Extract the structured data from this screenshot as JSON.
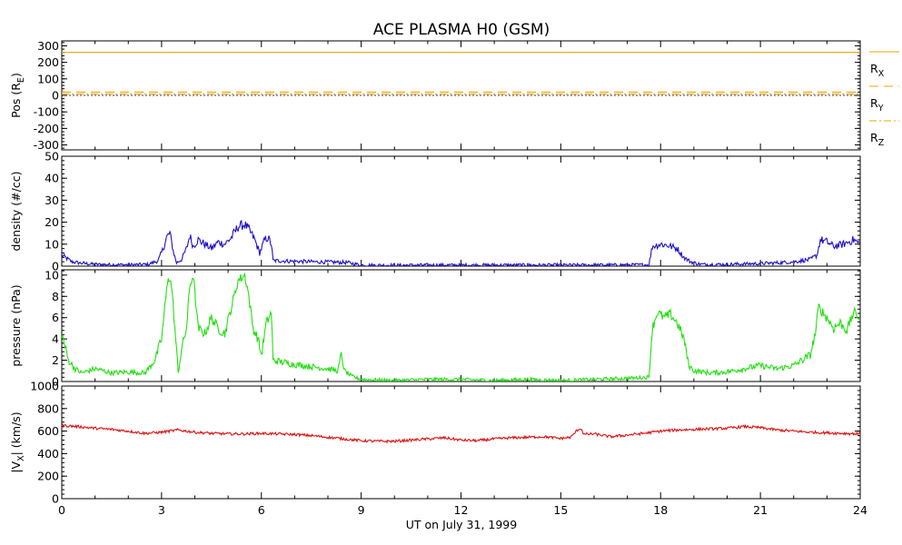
{
  "chart_data": {
    "title": "ACE PLASMA H0 (GSM)",
    "xlabel": "UT on July 31, 1999",
    "x_ticks": [
      "0",
      "3",
      "6",
      "9",
      "12",
      "15",
      "18",
      "21",
      "24"
    ],
    "xlim": [
      0,
      24
    ],
    "panels": [
      {
        "id": "pos",
        "type": "line",
        "ylabel": {
          "main": "Pos (R",
          "sub": "E",
          "tail": ")"
        },
        "ylim": [
          -330,
          330
        ],
        "y_ticks": [
          -300,
          -200,
          -100,
          0,
          100,
          200,
          300
        ],
        "y_tick_labels": [
          "-300",
          "-200",
          "-100",
          "0",
          "100",
          "200",
          "300"
        ],
        "series": [
          {
            "name": "R",
            "sub": "X",
            "color": "#f0a000",
            "dash": "solid",
            "values": [
              [
                0,
                260
              ],
              [
                24,
                260
              ]
            ]
          },
          {
            "name": "R",
            "sub": "Y",
            "color": "#f0a000",
            "dash": "dashed",
            "values": [
              [
                0,
                20
              ],
              [
                24,
                20
              ]
            ]
          },
          {
            "name": "R",
            "sub": "Z",
            "color": "#f0a000",
            "dash": "dashdot",
            "values": [
              [
                0,
                8
              ],
              [
                24,
                8
              ]
            ]
          }
        ]
      },
      {
        "id": "density",
        "type": "line",
        "ylabel": {
          "main": "density (#/cc)",
          "sub": "",
          "tail": ""
        },
        "ylim": [
          0,
          50
        ],
        "y_ticks": [
          0,
          10,
          20,
          30,
          40,
          50
        ],
        "y_tick_labels": [
          "0",
          "10",
          "20",
          "30",
          "40",
          "50"
        ],
        "series": [
          {
            "name": "",
            "color": "#1f10c8",
            "values": [
              [
                0,
                5
              ],
              [
                0.3,
                2
              ],
              [
                0.5,
                1.5
              ],
              [
                1,
                0.8
              ],
              [
                2,
                0.6
              ],
              [
                2.6,
                0.8
              ],
              [
                2.9,
                2.5
              ],
              [
                3.05,
                8
              ],
              [
                3.15,
                13
              ],
              [
                3.25,
                15
              ],
              [
                3.35,
                7
              ],
              [
                3.45,
                1.5
              ],
              [
                3.6,
                3
              ],
              [
                3.75,
                8
              ],
              [
                3.85,
                14
              ],
              [
                3.95,
                9
              ],
              [
                4.1,
                12
              ],
              [
                4.3,
                10
              ],
              [
                4.5,
                8
              ],
              [
                4.7,
                11
              ],
              [
                4.9,
                10
              ],
              [
                5.1,
                13
              ],
              [
                5.3,
                18
              ],
              [
                5.5,
                19
              ],
              [
                5.65,
                16
              ],
              [
                5.8,
                12
              ],
              [
                5.95,
                6
              ],
              [
                6.1,
                12
              ],
              [
                6.2,
                13
              ],
              [
                6.3,
                10
              ],
              [
                6.35,
                2.5
              ],
              [
                6.8,
                2.3
              ],
              [
                7.5,
                2
              ],
              [
                8.2,
                1.8
              ],
              [
                8.6,
                1.6
              ],
              [
                9,
                0.5
              ],
              [
                10,
                0.4
              ],
              [
                11,
                0.5
              ],
              [
                12,
                0.5
              ],
              [
                13,
                0.5
              ],
              [
                14,
                0.5
              ],
              [
                15,
                0.5
              ],
              [
                16,
                0.5
              ],
              [
                17,
                0.6
              ],
              [
                17.65,
                0.6
              ],
              [
                17.75,
                9
              ],
              [
                18,
                10
              ],
              [
                18.2,
                9.5
              ],
              [
                18.5,
                8
              ],
              [
                18.7,
                4
              ],
              [
                18.9,
                2
              ],
              [
                19.2,
                0.8
              ],
              [
                20,
                0.8
              ],
              [
                20.5,
                1
              ],
              [
                21,
                1.2
              ],
              [
                21.5,
                1.5
              ],
              [
                22,
                2
              ],
              [
                22.5,
                3
              ],
              [
                22.7,
                5
              ],
              [
                22.8,
                12
              ],
              [
                23,
                11
              ],
              [
                23.2,
                9
              ],
              [
                23.5,
                10
              ],
              [
                23.8,
                12
              ],
              [
                24,
                10
              ]
            ]
          }
        ]
      },
      {
        "id": "pressure",
        "type": "line",
        "ylabel": {
          "main": "pressure (nPa)",
          "sub": "",
          "tail": ""
        },
        "ylim": [
          0,
          10.5
        ],
        "y_ticks": [
          0,
          2,
          4,
          6,
          8,
          10
        ],
        "y_tick_labels": [
          "0",
          "2",
          "4",
          "6",
          "8",
          "10"
        ],
        "series": [
          {
            "name": "",
            "color": "#22e010",
            "values": [
              [
                0,
                4.5
              ],
              [
                0.2,
                2
              ],
              [
                0.4,
                1.2
              ],
              [
                0.6,
                0.8
              ],
              [
                1,
                1.2
              ],
              [
                1.5,
                0.8
              ],
              [
                2,
                0.9
              ],
              [
                2.5,
                0.8
              ],
              [
                2.8,
                2
              ],
              [
                3,
                4
              ],
              [
                3.1,
                7
              ],
              [
                3.2,
                10
              ],
              [
                3.3,
                9
              ],
              [
                3.4,
                5
              ],
              [
                3.5,
                0.8
              ],
              [
                3.6,
                3
              ],
              [
                3.75,
                5
              ],
              [
                3.85,
                9
              ],
              [
                3.95,
                10
              ],
              [
                4.1,
                5
              ],
              [
                4.3,
                4.5
              ],
              [
                4.5,
                6
              ],
              [
                4.7,
                5
              ],
              [
                4.9,
                4.5
              ],
              [
                5.1,
                7
              ],
              [
                5.3,
                9.5
              ],
              [
                5.5,
                10
              ],
              [
                5.6,
                8.5
              ],
              [
                5.75,
                5
              ],
              [
                5.9,
                4
              ],
              [
                6,
                2.5
              ],
              [
                6.15,
                5.5
              ],
              [
                6.3,
                6.5
              ],
              [
                6.35,
                2
              ],
              [
                7,
                1.6
              ],
              [
                7.5,
                1.4
              ],
              [
                8,
                1.2
              ],
              [
                8.3,
                1
              ],
              [
                8.4,
                2.5
              ],
              [
                8.5,
                1
              ],
              [
                8.7,
                0.5
              ],
              [
                9,
                0.2
              ],
              [
                10,
                0.1
              ],
              [
                11,
                0.2
              ],
              [
                12,
                0.2
              ],
              [
                13,
                0.1
              ],
              [
                14,
                0.2
              ],
              [
                15,
                0.1
              ],
              [
                16,
                0.2
              ],
              [
                17,
                0.3
              ],
              [
                17.65,
                0.4
              ],
              [
                17.75,
                5
              ],
              [
                17.9,
                6.5
              ],
              [
                18.1,
                6
              ],
              [
                18.3,
                6.3
              ],
              [
                18.5,
                5.5
              ],
              [
                18.7,
                4
              ],
              [
                18.85,
                1.5
              ],
              [
                19,
                1
              ],
              [
                19.5,
                0.8
              ],
              [
                20,
                0.9
              ],
              [
                20.5,
                1.2
              ],
              [
                21,
                1.5
              ],
              [
                21.5,
                1.2
              ],
              [
                22,
                1.5
              ],
              [
                22.5,
                2.5
              ],
              [
                22.65,
                4.5
              ],
              [
                22.75,
                7
              ],
              [
                23,
                6
              ],
              [
                23.2,
                5
              ],
              [
                23.4,
                5.5
              ],
              [
                23.6,
                4.8
              ],
              [
                23.8,
                6.5
              ],
              [
                24,
                6
              ]
            ]
          }
        ]
      },
      {
        "id": "speed",
        "type": "line",
        "ylabel": {
          "main": "|V",
          "sub": "X",
          "tail": "| (km/s)"
        },
        "ylim": [
          0,
          1000
        ],
        "y_ticks": [
          0,
          200,
          400,
          600,
          800,
          1000
        ],
        "y_tick_labels": [
          "0",
          "200",
          "400",
          "600",
          "800",
          "1000"
        ],
        "series": [
          {
            "name": "",
            "color": "#e01010",
            "values": [
              [
                0,
                650
              ],
              [
                0.5,
                640
              ],
              [
                1,
                625
              ],
              [
                1.5,
                615
              ],
              [
                2,
                600
              ],
              [
                2.5,
                580
              ],
              [
                3,
                590
              ],
              [
                3.5,
                610
              ],
              [
                4,
                590
              ],
              [
                4.5,
                580
              ],
              [
                5,
                575
              ],
              [
                5.5,
                575
              ],
              [
                6,
                580
              ],
              [
                6.5,
                575
              ],
              [
                7,
                570
              ],
              [
                7.5,
                560
              ],
              [
                8,
                545
              ],
              [
                8.5,
                530
              ],
              [
                9,
                515
              ],
              [
                9.5,
                510
              ],
              [
                10,
                510
              ],
              [
                10.5,
                520
              ],
              [
                11,
                530
              ],
              [
                11.5,
                540
              ],
              [
                12,
                520
              ],
              [
                12.5,
                515
              ],
              [
                13,
                530
              ],
              [
                13.5,
                540
              ],
              [
                14,
                545
              ],
              [
                14.5,
                550
              ],
              [
                15,
                535
              ],
              [
                15.3,
                545
              ],
              [
                15.5,
                610
              ],
              [
                15.6,
                625
              ],
              [
                15.7,
                570
              ],
              [
                16,
                575
              ],
              [
                16.5,
                550
              ],
              [
                17,
                565
              ],
              [
                17.5,
                580
              ],
              [
                18,
                600
              ],
              [
                18.5,
                610
              ],
              [
                19,
                615
              ],
              [
                19.5,
                620
              ],
              [
                20,
                625
              ],
              [
                20.5,
                640
              ],
              [
                21,
                630
              ],
              [
                21.5,
                610
              ],
              [
                22,
                600
              ],
              [
                22.5,
                590
              ],
              [
                23,
                585
              ],
              [
                23.5,
                580
              ],
              [
                24,
                575
              ]
            ]
          }
        ]
      }
    ]
  }
}
